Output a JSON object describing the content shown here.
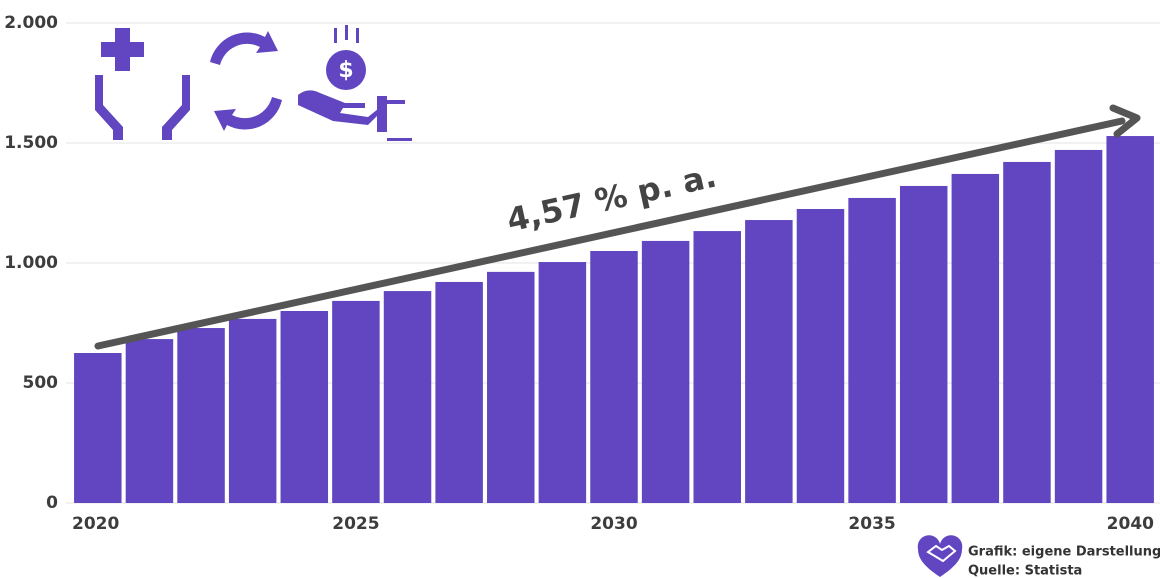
{
  "chart_data": {
    "type": "bar",
    "categories": [
      "2020",
      null,
      null,
      null,
      null,
      "2025",
      null,
      null,
      null,
      null,
      "2030",
      null,
      null,
      null,
      null,
      "2035",
      null,
      null,
      null,
      null,
      "2040"
    ],
    "values": [
      625,
      683,
      729,
      767,
      800,
      842,
      883,
      921,
      963,
      1004,
      1050,
      1092,
      1133,
      1179,
      1225,
      1271,
      1321,
      1371,
      1421,
      1471,
      1529
    ],
    "color": "#6145c1",
    "ylim": [
      0,
      2000
    ],
    "yticks": [
      0,
      500,
      {
        "value": 1000,
        "label": "1.000"
      },
      {
        "value": 1500,
        "label": "1.500"
      },
      {
        "value": 2000,
        "label": "2.000"
      }
    ],
    "grid": true,
    "annotation": "4,57 % p. a.",
    "footer": [
      "Grafik: eigene Darstellung",
      "Quelle: Statista"
    ]
  }
}
